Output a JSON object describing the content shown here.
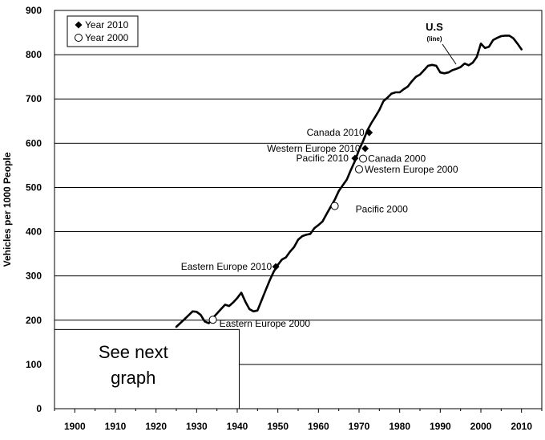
{
  "chart_data": {
    "type": "line",
    "ylabel": "Vehicles per 1000 People",
    "ylim": [
      0,
      900
    ],
    "yticks": [
      0,
      100,
      200,
      300,
      400,
      500,
      600,
      700,
      800,
      900
    ],
    "xlim": [
      1895,
      2015
    ],
    "xticks": [
      1900,
      1910,
      1920,
      1930,
      1940,
      1950,
      1960,
      1970,
      1980,
      1990,
      2000,
      2010
    ],
    "grid": true,
    "legend": {
      "placement": "top-left",
      "entries": [
        {
          "label": "Year 2010",
          "marker": "filled-diamond"
        },
        {
          "label": "Year 2000",
          "marker": "open-circle"
        }
      ]
    },
    "us_label": {
      "title": "U.S",
      "subtitle": "(line)"
    },
    "note_box": {
      "line1": "See next",
      "line2": "graph"
    },
    "series": [
      {
        "name": "U.S",
        "x": [
          1925,
          1927,
          1929,
          1930,
          1931,
          1932,
          1933,
          1934,
          1935,
          1936,
          1937,
          1938,
          1939,
          1940,
          1941,
          1942,
          1943,
          1944,
          1945,
          1946,
          1947,
          1948,
          1949,
          1950,
          1951,
          1952,
          1953,
          1954,
          1955,
          1956,
          1957,
          1958,
          1959,
          1960,
          1961,
          1962,
          1963,
          1964,
          1965,
          1966,
          1967,
          1968,
          1969,
          1970,
          1971,
          1972,
          1973,
          1974,
          1975,
          1976,
          1977,
          1978,
          1979,
          1980,
          1981,
          1982,
          1983,
          1984,
          1985,
          1986,
          1987,
          1988,
          1989,
          1990,
          1991,
          1992,
          1993,
          1994,
          1995,
          1996,
          1997,
          1998,
          1999,
          2000,
          2001,
          2002,
          2003,
          2004,
          2005,
          2006,
          2007,
          2008,
          2009,
          2010
        ],
        "y": [
          185,
          202,
          220,
          219,
          212,
          197,
          193,
          205,
          215,
          225,
          235,
          232,
          240,
          250,
          262,
          242,
          225,
          220,
          222,
          245,
          268,
          290,
          310,
          325,
          337,
          342,
          355,
          365,
          382,
          390,
          393,
          395,
          408,
          415,
          423,
          440,
          456,
          472,
          492,
          505,
          518,
          540,
          560,
          585,
          605,
          628,
          645,
          660,
          675,
          695,
          703,
          712,
          715,
          715,
          722,
          728,
          740,
          750,
          755,
          765,
          775,
          777,
          775,
          760,
          758,
          760,
          765,
          768,
          772,
          780,
          776,
          782,
          795,
          825,
          815,
          818,
          833,
          838,
          842,
          843,
          843,
          837,
          825,
          812
        ]
      }
    ],
    "points": [
      {
        "label": "Canada 2010",
        "x": 1972.5,
        "y": 624,
        "marker": "filled-diamond"
      },
      {
        "label": "Western Europe 2010",
        "x": 1971.5,
        "y": 588,
        "marker": "filled-diamond"
      },
      {
        "label": "Pacific 2010",
        "x": 1969,
        "y": 566,
        "marker": "filled-diamond"
      },
      {
        "label": "Eastern Europe 2010",
        "x": 1949.5,
        "y": 321,
        "marker": "filled-diamond"
      },
      {
        "label": "Canada 2000",
        "x": 1971,
        "y": 565,
        "marker": "open-circle"
      },
      {
        "label": "Western Europe 2000",
        "x": 1970,
        "y": 541,
        "marker": "open-circle"
      },
      {
        "label": "Pacific 2000",
        "x": 1964,
        "y": 458,
        "marker": "open-circle"
      },
      {
        "label": "Eastern Europe 2000",
        "x": 1934,
        "y": 201,
        "marker": "open-circle"
      }
    ]
  }
}
